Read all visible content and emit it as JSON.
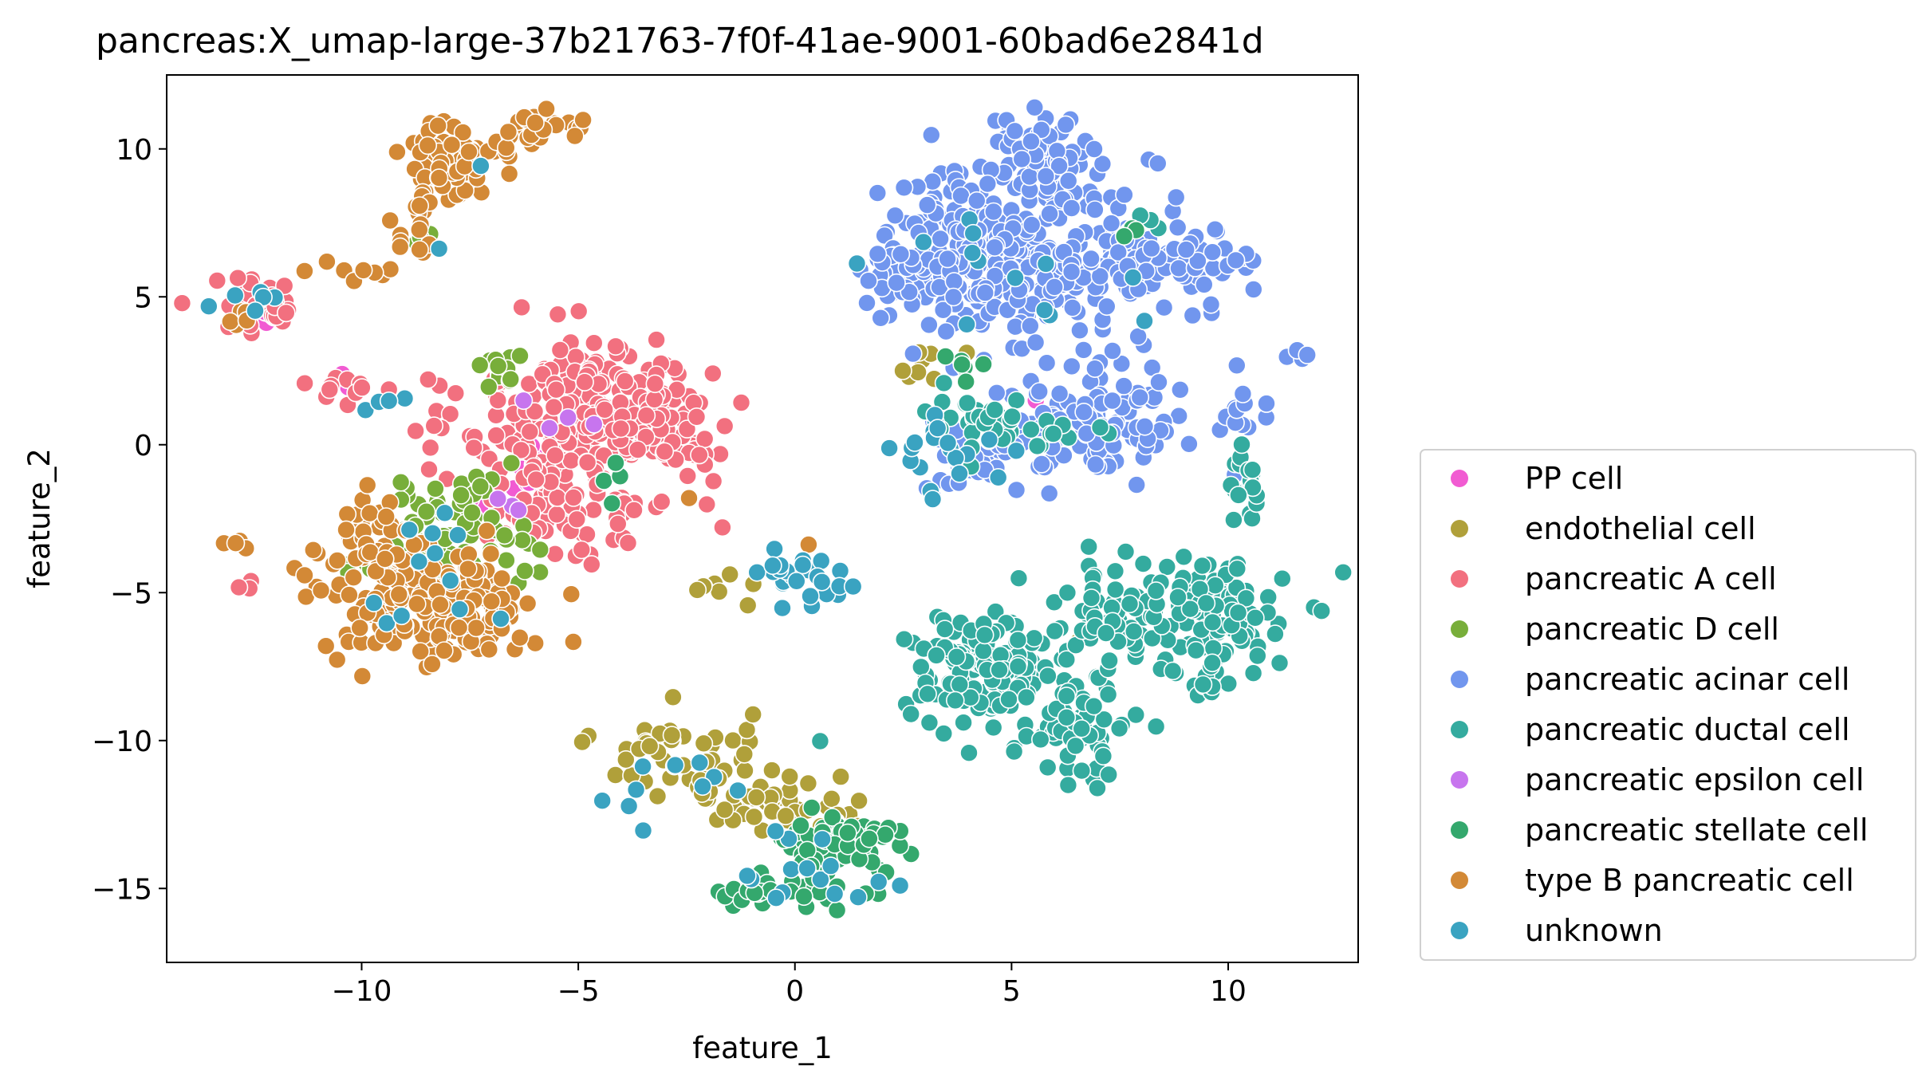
{
  "chart_data": {
    "type": "scatter",
    "title": "pancreas:X_umap-large-37b21763-7f0f-41ae-9001-60bad6e2841d",
    "xlabel": "feature_1",
    "ylabel": "feature_2",
    "xlim": [
      -14.5,
      13.0
    ],
    "ylim": [
      -17.5,
      12.5
    ],
    "xticks": [
      -10,
      -5,
      0,
      5,
      10
    ],
    "yticks": [
      -15,
      -10,
      -5,
      0,
      5,
      10
    ],
    "xtick_labels": [
      "−10",
      "−5",
      "0",
      "5",
      "10"
    ],
    "ytick_labels": [
      "−15",
      "−10",
      "−5",
      "0",
      "5",
      "10"
    ],
    "grid": false,
    "legend_position": "outside-right",
    "series": [
      {
        "name": "PP cell",
        "color": "#f15bd2",
        "clusters": [
          {
            "cx": -12.3,
            "cy": 4.7,
            "sx": 0.3,
            "sy": 0.3,
            "n": 10
          },
          {
            "cx": -6.2,
            "cy": -1.5,
            "sx": 0.6,
            "sy": 1.0,
            "n": 22
          },
          {
            "cx": -10.5,
            "cy": 2.3,
            "sx": 0.2,
            "sy": 0.2,
            "n": 3
          },
          {
            "cx": 0.0,
            "cy": -15.1,
            "sx": 0.1,
            "sy": 0.1,
            "n": 1
          },
          {
            "cx": 5.8,
            "cy": 1.3,
            "sx": 0.1,
            "sy": 0.1,
            "n": 1
          }
        ]
      },
      {
        "name": "endothelial cell",
        "color": "#b0a03a",
        "clusters": [
          {
            "cx": -2.8,
            "cy": -10.3,
            "sx": 0.9,
            "sy": 0.7,
            "n": 45
          },
          {
            "cx": -1.0,
            "cy": -12.0,
            "sx": 1.0,
            "sy": 0.5,
            "n": 40
          },
          {
            "cx": 1.0,
            "cy": -12.5,
            "sx": 0.5,
            "sy": 0.4,
            "n": 12
          },
          {
            "cx": 3.0,
            "cy": 2.8,
            "sx": 0.3,
            "sy": 0.4,
            "n": 8
          },
          {
            "cx": -1.5,
            "cy": -4.9,
            "sx": 0.5,
            "sy": 0.2,
            "n": 8
          },
          {
            "cx": 6.6,
            "cy": -6.7,
            "sx": 0.1,
            "sy": 0.1,
            "n": 1
          }
        ]
      },
      {
        "name": "pancreatic A cell",
        "color": "#f2707f",
        "clusters": [
          {
            "cx": -4.8,
            "cy": 1.0,
            "sx": 1.4,
            "sy": 1.3,
            "n": 230
          },
          {
            "cx": -3.2,
            "cy": 0.6,
            "sx": 0.9,
            "sy": 0.8,
            "n": 70
          },
          {
            "cx": -5.2,
            "cy": -1.9,
            "sx": 1.2,
            "sy": 1.0,
            "n": 80
          },
          {
            "cx": -12.4,
            "cy": 4.8,
            "sx": 0.6,
            "sy": 0.5,
            "n": 35
          },
          {
            "cx": -10.2,
            "cy": 2.0,
            "sx": 0.6,
            "sy": 0.2,
            "n": 14
          },
          {
            "cx": -12.6,
            "cy": -4.7,
            "sx": 0.2,
            "sy": 0.1,
            "n": 3
          }
        ]
      },
      {
        "name": "pancreatic D cell",
        "color": "#78ae3a",
        "clusters": [
          {
            "cx": -7.8,
            "cy": -2.9,
            "sx": 0.9,
            "sy": 0.9,
            "n": 70
          },
          {
            "cx": -6.8,
            "cy": 2.5,
            "sx": 0.3,
            "sy": 0.4,
            "n": 12
          },
          {
            "cx": -9.6,
            "cy": -3.8,
            "sx": 0.5,
            "sy": 0.6,
            "n": 15
          },
          {
            "cx": -8.4,
            "cy": 7.0,
            "sx": 0.2,
            "sy": 0.2,
            "n": 3
          }
        ]
      },
      {
        "name": "pancreatic acinar cell",
        "color": "#7196ee",
        "clusters": [
          {
            "cx": 5.2,
            "cy": 6.8,
            "sx": 1.6,
            "sy": 1.5,
            "n": 320
          },
          {
            "cx": 3.3,
            "cy": 5.6,
            "sx": 0.9,
            "sy": 0.7,
            "n": 60
          },
          {
            "cx": 8.6,
            "cy": 6.0,
            "sx": 1.0,
            "sy": 0.6,
            "n": 70
          },
          {
            "cx": 6.8,
            "cy": 1.0,
            "sx": 1.1,
            "sy": 1.1,
            "n": 120
          },
          {
            "cx": 5.6,
            "cy": 10.0,
            "sx": 0.5,
            "sy": 0.6,
            "n": 40
          },
          {
            "cx": 4.2,
            "cy": -0.5,
            "sx": 0.6,
            "sy": 0.6,
            "n": 30
          },
          {
            "cx": 10.3,
            "cy": 0.8,
            "sx": 0.3,
            "sy": 0.6,
            "n": 15
          },
          {
            "cx": 11.5,
            "cy": 3.0,
            "sx": 0.2,
            "sy": 0.1,
            "n": 4
          }
        ]
      },
      {
        "name": "pancreatic ductal cell",
        "color": "#34ab9f",
        "clusters": [
          {
            "cx": 4.5,
            "cy": -7.5,
            "sx": 1.0,
            "sy": 0.9,
            "n": 140
          },
          {
            "cx": 6.5,
            "cy": -9.8,
            "sx": 0.6,
            "sy": 0.7,
            "n": 60
          },
          {
            "cx": 9.5,
            "cy": -6.0,
            "sx": 1.0,
            "sy": 1.2,
            "n": 130
          },
          {
            "cx": 7.2,
            "cy": -5.5,
            "sx": 0.7,
            "sy": 0.8,
            "n": 40
          },
          {
            "cx": 10.4,
            "cy": -1.5,
            "sx": 0.2,
            "sy": 0.8,
            "n": 18
          },
          {
            "cx": 4.3,
            "cy": 0.8,
            "sx": 0.7,
            "sy": 0.7,
            "n": 30
          },
          {
            "cx": 6.0,
            "cy": 0.4,
            "sx": 0.6,
            "sy": 0.5,
            "n": 12
          },
          {
            "cx": 7.8,
            "cy": 7.4,
            "sx": 0.3,
            "sy": 0.2,
            "n": 3
          }
        ]
      },
      {
        "name": "pancreatic epsilon cell",
        "color": "#c775ee",
        "clusters": [
          {
            "cx": -5.6,
            "cy": 1.2,
            "sx": 0.6,
            "sy": 0.6,
            "n": 4
          },
          {
            "cx": -6.5,
            "cy": -1.9,
            "sx": 0.3,
            "sy": 0.3,
            "n": 3
          }
        ]
      },
      {
        "name": "pancreatic stellate cell",
        "color": "#34a86d",
        "clusters": [
          {
            "cx": 0.8,
            "cy": -13.5,
            "sx": 0.8,
            "sy": 0.6,
            "n": 55
          },
          {
            "cx": 0.0,
            "cy": -15.3,
            "sx": 1.0,
            "sy": 0.3,
            "n": 30
          },
          {
            "cx": 1.8,
            "cy": -13.2,
            "sx": 0.4,
            "sy": 0.3,
            "n": 10
          },
          {
            "cx": 4.0,
            "cy": 2.5,
            "sx": 0.4,
            "sy": 0.3,
            "n": 6
          },
          {
            "cx": 7.6,
            "cy": 7.2,
            "sx": 0.3,
            "sy": 0.2,
            "n": 3
          },
          {
            "cx": -4.2,
            "cy": -1.3,
            "sx": 0.4,
            "sy": 0.4,
            "n": 4
          }
        ]
      },
      {
        "name": "type B pancreatic cell",
        "color": "#d38936",
        "clusters": [
          {
            "cx": -8.3,
            "cy": -5.5,
            "sx": 1.2,
            "sy": 1.0,
            "n": 180
          },
          {
            "cx": -9.8,
            "cy": -3.6,
            "sx": 0.5,
            "sy": 0.8,
            "n": 50
          },
          {
            "cx": -8.0,
            "cy": 9.6,
            "sx": 0.6,
            "sy": 0.7,
            "n": 60
          },
          {
            "cx": -6.2,
            "cy": 10.5,
            "sx": 0.9,
            "sy": 0.3,
            "n": 30
          },
          {
            "cx": -8.6,
            "cy": 7.5,
            "sx": 0.3,
            "sy": 0.7,
            "n": 15
          },
          {
            "cx": -10.2,
            "cy": 5.9,
            "sx": 0.5,
            "sy": 0.3,
            "n": 8
          },
          {
            "cx": -12.8,
            "cy": 4.3,
            "sx": 0.3,
            "sy": 0.3,
            "n": 5
          },
          {
            "cx": -12.8,
            "cy": -3.3,
            "sx": 0.3,
            "sy": 0.1,
            "n": 4
          },
          {
            "cx": -2.4,
            "cy": -1.8,
            "sx": 0.1,
            "sy": 0.1,
            "n": 1
          },
          {
            "cx": 0.4,
            "cy": -3.4,
            "sx": 0.1,
            "sy": 0.1,
            "n": 1
          }
        ]
      },
      {
        "name": "unknown",
        "color": "#3aa3c1",
        "clusters": [
          {
            "cx": 0.2,
            "cy": -4.6,
            "sx": 0.7,
            "sy": 0.5,
            "n": 25
          },
          {
            "cx": 3.8,
            "cy": -0.3,
            "sx": 0.7,
            "sy": 0.7,
            "n": 20
          },
          {
            "cx": -8.2,
            "cy": -4.5,
            "sx": 1.0,
            "sy": 1.5,
            "n": 12
          },
          {
            "cx": 0.6,
            "cy": -14.6,
            "sx": 0.8,
            "sy": 0.6,
            "n": 15
          },
          {
            "cx": -2.5,
            "cy": -11.5,
            "sx": 1.2,
            "sy": 0.8,
            "n": 10
          },
          {
            "cx": -12.6,
            "cy": 5.0,
            "sx": 0.4,
            "sy": 0.3,
            "n": 6
          },
          {
            "cx": -9.0,
            "cy": 1.6,
            "sx": 0.5,
            "sy": 0.2,
            "n": 4
          },
          {
            "cx": 5.0,
            "cy": 6.0,
            "sx": 1.4,
            "sy": 1.0,
            "n": 12
          },
          {
            "cx": -8.2,
            "cy": 6.5,
            "sx": 0.1,
            "sy": 0.1,
            "n": 1
          },
          {
            "cx": -7.4,
            "cy": 9.3,
            "sx": 0.1,
            "sy": 0.1,
            "n": 1
          },
          {
            "cx": 8.0,
            "cy": 4.3,
            "sx": 0.1,
            "sy": 0.1,
            "n": 1
          }
        ]
      }
    ]
  }
}
